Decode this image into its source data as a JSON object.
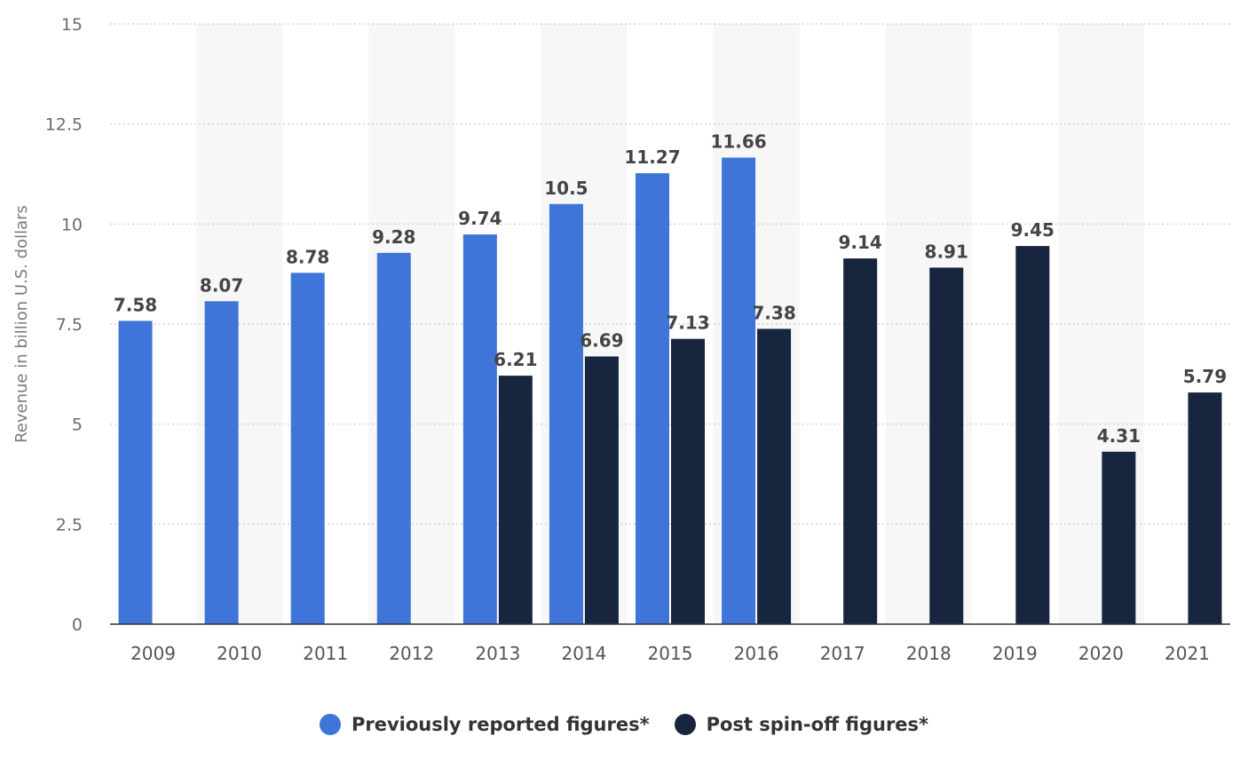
{
  "colors": {
    "previously": "#3f74d8",
    "post": "#17263e",
    "band": "#f7f7f7",
    "grid": "#c9c9c9"
  },
  "legend": {
    "previously_label": "Previously reported figures*",
    "post_label": "Post spin-off figures*"
  },
  "chart_data": {
    "type": "bar",
    "title": "",
    "xlabel": "",
    "ylabel": "Revenue in billion U.S. dollars",
    "ylim": [
      0,
      15
    ],
    "yticks": [
      0,
      2.5,
      5,
      7.5,
      10,
      12.5,
      15
    ],
    "ytick_labels": [
      "0",
      "2.5",
      "5",
      "7.5",
      "10",
      "12.5",
      "15"
    ],
    "grid": true,
    "legend_position": "bottom",
    "categories": [
      "2009",
      "2010",
      "2011",
      "2012",
      "2013",
      "2014",
      "2015",
      "2016",
      "2017",
      "2018",
      "2019",
      "2020",
      "2021"
    ],
    "series": [
      {
        "name": "Previously reported figures*",
        "color": "#3f74d8",
        "values": [
          7.58,
          8.07,
          8.78,
          9.28,
          9.74,
          10.5,
          11.27,
          11.66,
          null,
          null,
          null,
          null,
          null
        ],
        "labels": [
          "7.58",
          "8.07",
          "8.78",
          "9.28",
          "9.74",
          "10.5",
          "11.27",
          "11.66",
          null,
          null,
          null,
          null,
          null
        ]
      },
      {
        "name": "Post spin-off figures*",
        "color": "#17263e",
        "values": [
          null,
          null,
          null,
          null,
          6.21,
          6.69,
          7.13,
          7.38,
          9.14,
          8.91,
          9.45,
          4.31,
          5.79
        ],
        "labels": [
          null,
          null,
          null,
          null,
          "6.21",
          "6.69",
          "7.13",
          "7.38",
          "9.14",
          "8.91",
          "9.45",
          "4.31",
          "5.79"
        ]
      }
    ]
  }
}
